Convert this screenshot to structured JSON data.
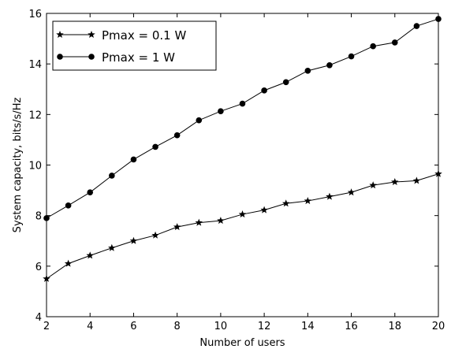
{
  "chart_data": {
    "type": "line",
    "xlabel": "Number of users",
    "ylabel": "System capacity, bits/s/Hz",
    "xlim": [
      2,
      20
    ],
    "ylim": [
      4,
      16
    ],
    "xticks": [
      "2",
      "4",
      "6",
      "8",
      "10",
      "12",
      "14",
      "16",
      "18",
      "20"
    ],
    "yticks": [
      "4",
      "6",
      "8",
      "10",
      "12",
      "14",
      "16"
    ],
    "grid": false,
    "legend_position": "top-left",
    "x": [
      2,
      3,
      4,
      5,
      6,
      7,
      8,
      9,
      10,
      11,
      12,
      13,
      14,
      15,
      16,
      17,
      18,
      19,
      20
    ],
    "series": [
      {
        "name": "Pmax = 0.1 W",
        "marker": "star",
        "values": [
          5.5,
          6.1,
          6.42,
          6.72,
          7.0,
          7.22,
          7.55,
          7.72,
          7.8,
          8.05,
          8.22,
          8.48,
          8.58,
          8.75,
          8.92,
          9.2,
          9.33,
          9.38,
          9.65
        ]
      },
      {
        "name": "Pmax = 1 W",
        "marker": "circle",
        "values": [
          7.9,
          8.4,
          8.92,
          9.58,
          10.22,
          10.72,
          11.18,
          11.77,
          12.13,
          12.43,
          12.95,
          13.28,
          13.73,
          13.95,
          14.3,
          14.7,
          14.85,
          15.5,
          15.78
        ]
      }
    ],
    "colors": {
      "line": "#000000",
      "axes": "#000000",
      "background": "#ffffff"
    }
  }
}
